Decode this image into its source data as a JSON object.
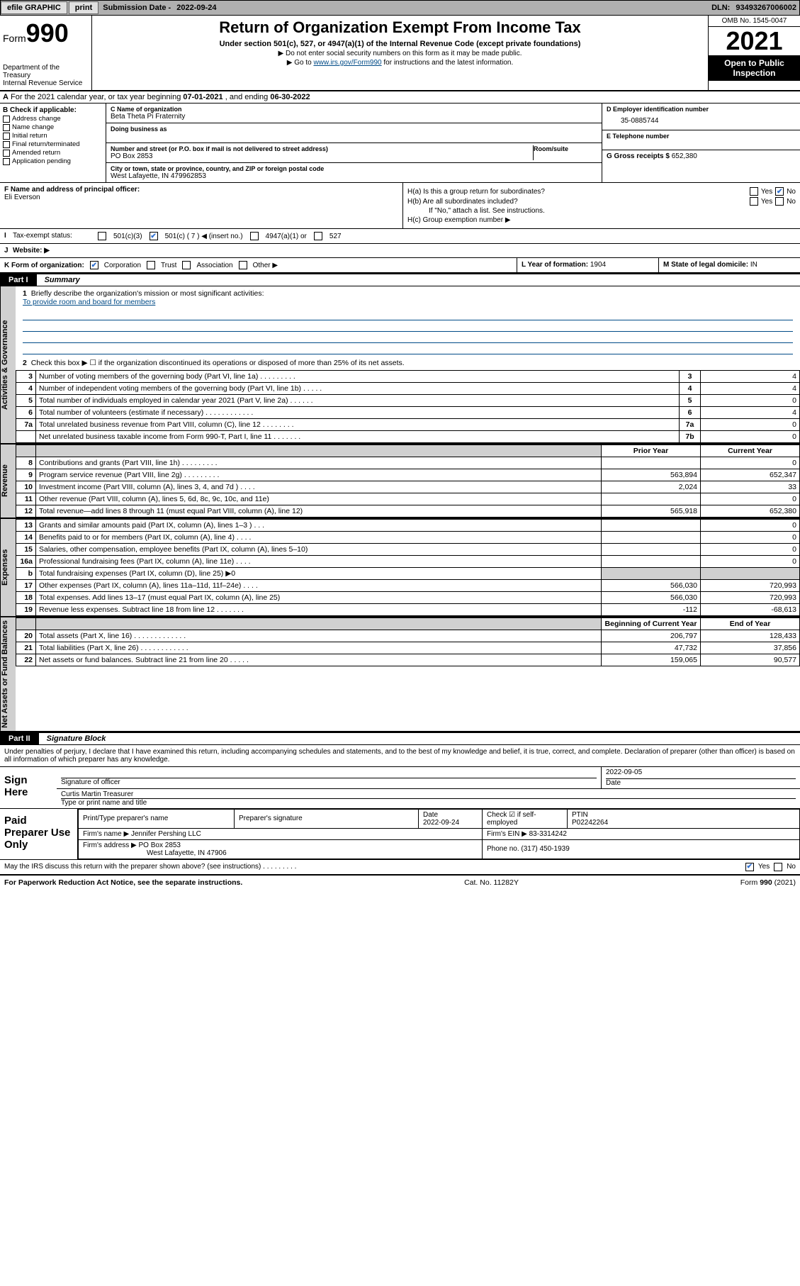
{
  "topbar": {
    "efile_label": "efile GRAPHIC",
    "print_btn": "print",
    "submission_label": "Submission Date - ",
    "submission_date": "2022-09-24",
    "dln_label": "DLN: ",
    "dln": "93493267006002"
  },
  "header": {
    "form_label": "Form",
    "form_num": "990",
    "dept": "Department of the Treasury",
    "irs": "Internal Revenue Service",
    "title": "Return of Organization Exempt From Income Tax",
    "sub": "Under section 501(c), 527, or 4947(a)(1) of the Internal Revenue Code (except private foundations)",
    "note1": "▶ Do not enter social security numbers on this form as it may be made public.",
    "note2_a": "▶ Go to ",
    "note2_link": "www.irs.gov/Form990",
    "note2_b": " for instructions and the latest information.",
    "omb": "OMB No. 1545-0047",
    "year": "2021",
    "open": "Open to Public Inspection"
  },
  "lineA": {
    "prefix_a": "A",
    "text_a": " For the 2021 calendar year, or tax year beginning ",
    "date1": "07-01-2021",
    "text_b": " , and ending ",
    "date2": "06-30-2022"
  },
  "boxB": {
    "title": "B Check if applicable:",
    "items": [
      "Address change",
      "Name change",
      "Initial return",
      "Final return/terminated",
      "Amended return",
      "Application pending"
    ]
  },
  "boxC": {
    "name_lbl": "C Name of organization",
    "name": "Beta Theta Pi Fraternity",
    "dba_lbl": "Doing business as",
    "addr_lbl": "Number and street (or P.O. box if mail is not delivered to street address)",
    "room_lbl": "Room/suite",
    "addr": "PO Box 2853",
    "city_lbl": "City or town, state or province, country, and ZIP or foreign postal code",
    "city": "West Lafayette, IN  479962853"
  },
  "boxD": {
    "ein_lbl": "D Employer identification number",
    "ein": "35-0885744",
    "tel_lbl": "E Telephone number",
    "gross_lbl": "G Gross receipts $ ",
    "gross": "652,380"
  },
  "boxF": {
    "lbl": "F Name and address of principal officer:",
    "name": "Eli Everson"
  },
  "boxH": {
    "a": "H(a)  Is this a group return for subordinates?",
    "b": "H(b)  Are all subordinates included?",
    "b_note": "If \"No,\" attach a list. See instructions.",
    "c": "H(c)  Group exemption number ▶",
    "yes": "Yes",
    "no": "No"
  },
  "rowI": {
    "lbl": "Tax-exempt status:",
    "o1": "501(c)(3)",
    "o2": "501(c) ( 7 ) ◀ (insert no.)",
    "o3": "4947(a)(1) or",
    "o4": "527"
  },
  "rowJ": {
    "lbl": "Website: ▶"
  },
  "rowK": {
    "lbl": "K Form of organization:",
    "o1": "Corporation",
    "o2": "Trust",
    "o3": "Association",
    "o4": "Other ▶",
    "L_lbl": "L Year of formation: ",
    "L_val": "1904",
    "M_lbl": "M State of legal domicile: ",
    "M_val": "IN"
  },
  "part1": {
    "hdr": "Part I",
    "title": "Summary"
  },
  "summary": {
    "q1_lbl": "1",
    "q1": "Briefly describe the organization's mission or most significant activities:",
    "q1_ans": "To provide room and board for members",
    "q2_lbl": "2",
    "q2": "Check this box ▶ ☐ if the organization discontinued its operations or disposed of more than 25% of its net assets.",
    "governance_rows": [
      {
        "n": "3",
        "d": "Number of voting members of the governing body (Part VI, line 1a)  .   .   .   .   .   .   .   .   .",
        "r": "3",
        "v": "4"
      },
      {
        "n": "4",
        "d": "Number of independent voting members of the governing body (Part VI, line 1b)  .   .   .   .   .",
        "r": "4",
        "v": "4"
      },
      {
        "n": "5",
        "d": "Total number of individuals employed in calendar year 2021 (Part V, line 2a)  .   .   .   .   .   .",
        "r": "5",
        "v": "0"
      },
      {
        "n": "6",
        "d": "Total number of volunteers (estimate if necessary)  .   .   .   .   .   .   .   .   .   .   .   .",
        "r": "6",
        "v": "4"
      },
      {
        "n": "7a",
        "d": "Total unrelated business revenue from Part VIII, column (C), line 12  .   .   .   .   .   .   .   .",
        "r": "7a",
        "v": "0"
      },
      {
        "n": "",
        "d": "Net unrelated business taxable income from Form 990-T, Part I, line 11  .   .   .   .   .   .   .",
        "r": "7b",
        "v": "0"
      }
    ],
    "col_prior": "Prior Year",
    "col_current": "Current Year",
    "revenue_rows": [
      {
        "n": "8",
        "d": "Contributions and grants (Part VIII, line 1h)   .   .   .   .   .   .   .   .   .",
        "p": "",
        "c": "0"
      },
      {
        "n": "9",
        "d": "Program service revenue (Part VIII, line 2g)   .   .   .   .   .   .   .   .   .",
        "p": "563,894",
        "c": "652,347"
      },
      {
        "n": "10",
        "d": "Investment income (Part VIII, column (A), lines 3, 4, and 7d )   .   .   .   .",
        "p": "2,024",
        "c": "33"
      },
      {
        "n": "11",
        "d": "Other revenue (Part VIII, column (A), lines 5, 6d, 8c, 9c, 10c, and 11e)",
        "p": "",
        "c": "0"
      },
      {
        "n": "12",
        "d": "Total revenue—add lines 8 through 11 (must equal Part VIII, column (A), line 12)",
        "p": "565,918",
        "c": "652,380"
      }
    ],
    "expense_rows": [
      {
        "n": "13",
        "d": "Grants and similar amounts paid (Part IX, column (A), lines 1–3 )   .   .   .",
        "p": "",
        "c": "0"
      },
      {
        "n": "14",
        "d": "Benefits paid to or for members (Part IX, column (A), line 4)   .   .   .   .",
        "p": "",
        "c": "0"
      },
      {
        "n": "15",
        "d": "Salaries, other compensation, employee benefits (Part IX, column (A), lines 5–10)",
        "p": "",
        "c": "0"
      },
      {
        "n": "16a",
        "d": "Professional fundraising fees (Part IX, column (A), line 11e)   .   .   .   .",
        "p": "",
        "c": "0"
      },
      {
        "n": "b",
        "d": "Total fundraising expenses (Part IX, column (D), line 25) ▶0",
        "p": "shade",
        "c": "shade"
      },
      {
        "n": "17",
        "d": "Other expenses (Part IX, column (A), lines 11a–11d, 11f–24e)   .   .   .   .",
        "p": "566,030",
        "c": "720,993"
      },
      {
        "n": "18",
        "d": "Total expenses. Add lines 13–17 (must equal Part IX, column (A), line 25)",
        "p": "566,030",
        "c": "720,993"
      },
      {
        "n": "19",
        "d": "Revenue less expenses. Subtract line 18 from line 12  .   .   .   .   .   .   .",
        "p": "-112",
        "c": "-68,613"
      }
    ],
    "col_begin": "Beginning of Current Year",
    "col_end": "End of Year",
    "net_rows": [
      {
        "n": "20",
        "d": "Total assets (Part X, line 16)  .   .   .   .   .   .   .   .   .   .   .   .   .",
        "p": "206,797",
        "c": "128,433"
      },
      {
        "n": "21",
        "d": "Total liabilities (Part X, line 26)  .   .   .   .   .   .   .   .   .   .   .   .",
        "p": "47,732",
        "c": "37,856"
      },
      {
        "n": "22",
        "d": "Net assets or fund balances. Subtract line 21 from line 20  .   .   .   .   .",
        "p": "159,065",
        "c": "90,577"
      }
    ]
  },
  "vtabs": {
    "gov": "Activities & Governance",
    "rev": "Revenue",
    "exp": "Expenses",
    "net": "Net Assets or Fund Balances"
  },
  "part2": {
    "hdr": "Part II",
    "title": "Signature Block"
  },
  "sig": {
    "note": "Under penalties of perjury, I declare that I have examined this return, including accompanying schedules and statements, and to the best of my knowledge and belief, it is true, correct, and complete. Declaration of preparer (other than officer) is based on all information of which preparer has any knowledge.",
    "sign_here": "Sign Here",
    "sig_officer": "Signature of officer",
    "sig_date": "2022-09-05",
    "date_lbl": "Date",
    "officer_name": "Curtis Martin  Treasurer",
    "name_title_lbl": "Type or print name and title"
  },
  "paid": {
    "title": "Paid Preparer Use Only",
    "h1": "Print/Type preparer's name",
    "h2": "Preparer's signature",
    "h3": "Date",
    "h4": "Check ☑ if self-employed",
    "h5": "PTIN",
    "date": "2022-09-24",
    "ptin": "P02242264",
    "firm_lbl": "Firm's name   ▶ ",
    "firm": "Jennifer Pershing LLC",
    "ein_lbl": "Firm's EIN ▶ ",
    "ein": "83-3314242",
    "addr_lbl": "Firm's address ▶ ",
    "addr1": "PO Box 2853",
    "addr2": "West Lafayette, IN  47906",
    "phone_lbl": "Phone no. ",
    "phone": "(317) 450-1939"
  },
  "discuss": {
    "q": "May the IRS discuss this return with the preparer shown above? (see instructions)    .    .    .    .    .    .    .    .    .",
    "yes": "Yes",
    "no": "No"
  },
  "footer": {
    "l": "For Paperwork Reduction Act Notice, see the separate instructions.",
    "m": "Cat. No. 11282Y",
    "r": "Form 990 (2021)"
  },
  "colors": {
    "topbar_bg": "#b0b0b0",
    "link": "#004b87",
    "shade": "#d0d0d0",
    "check_blue": "#3070d0"
  }
}
